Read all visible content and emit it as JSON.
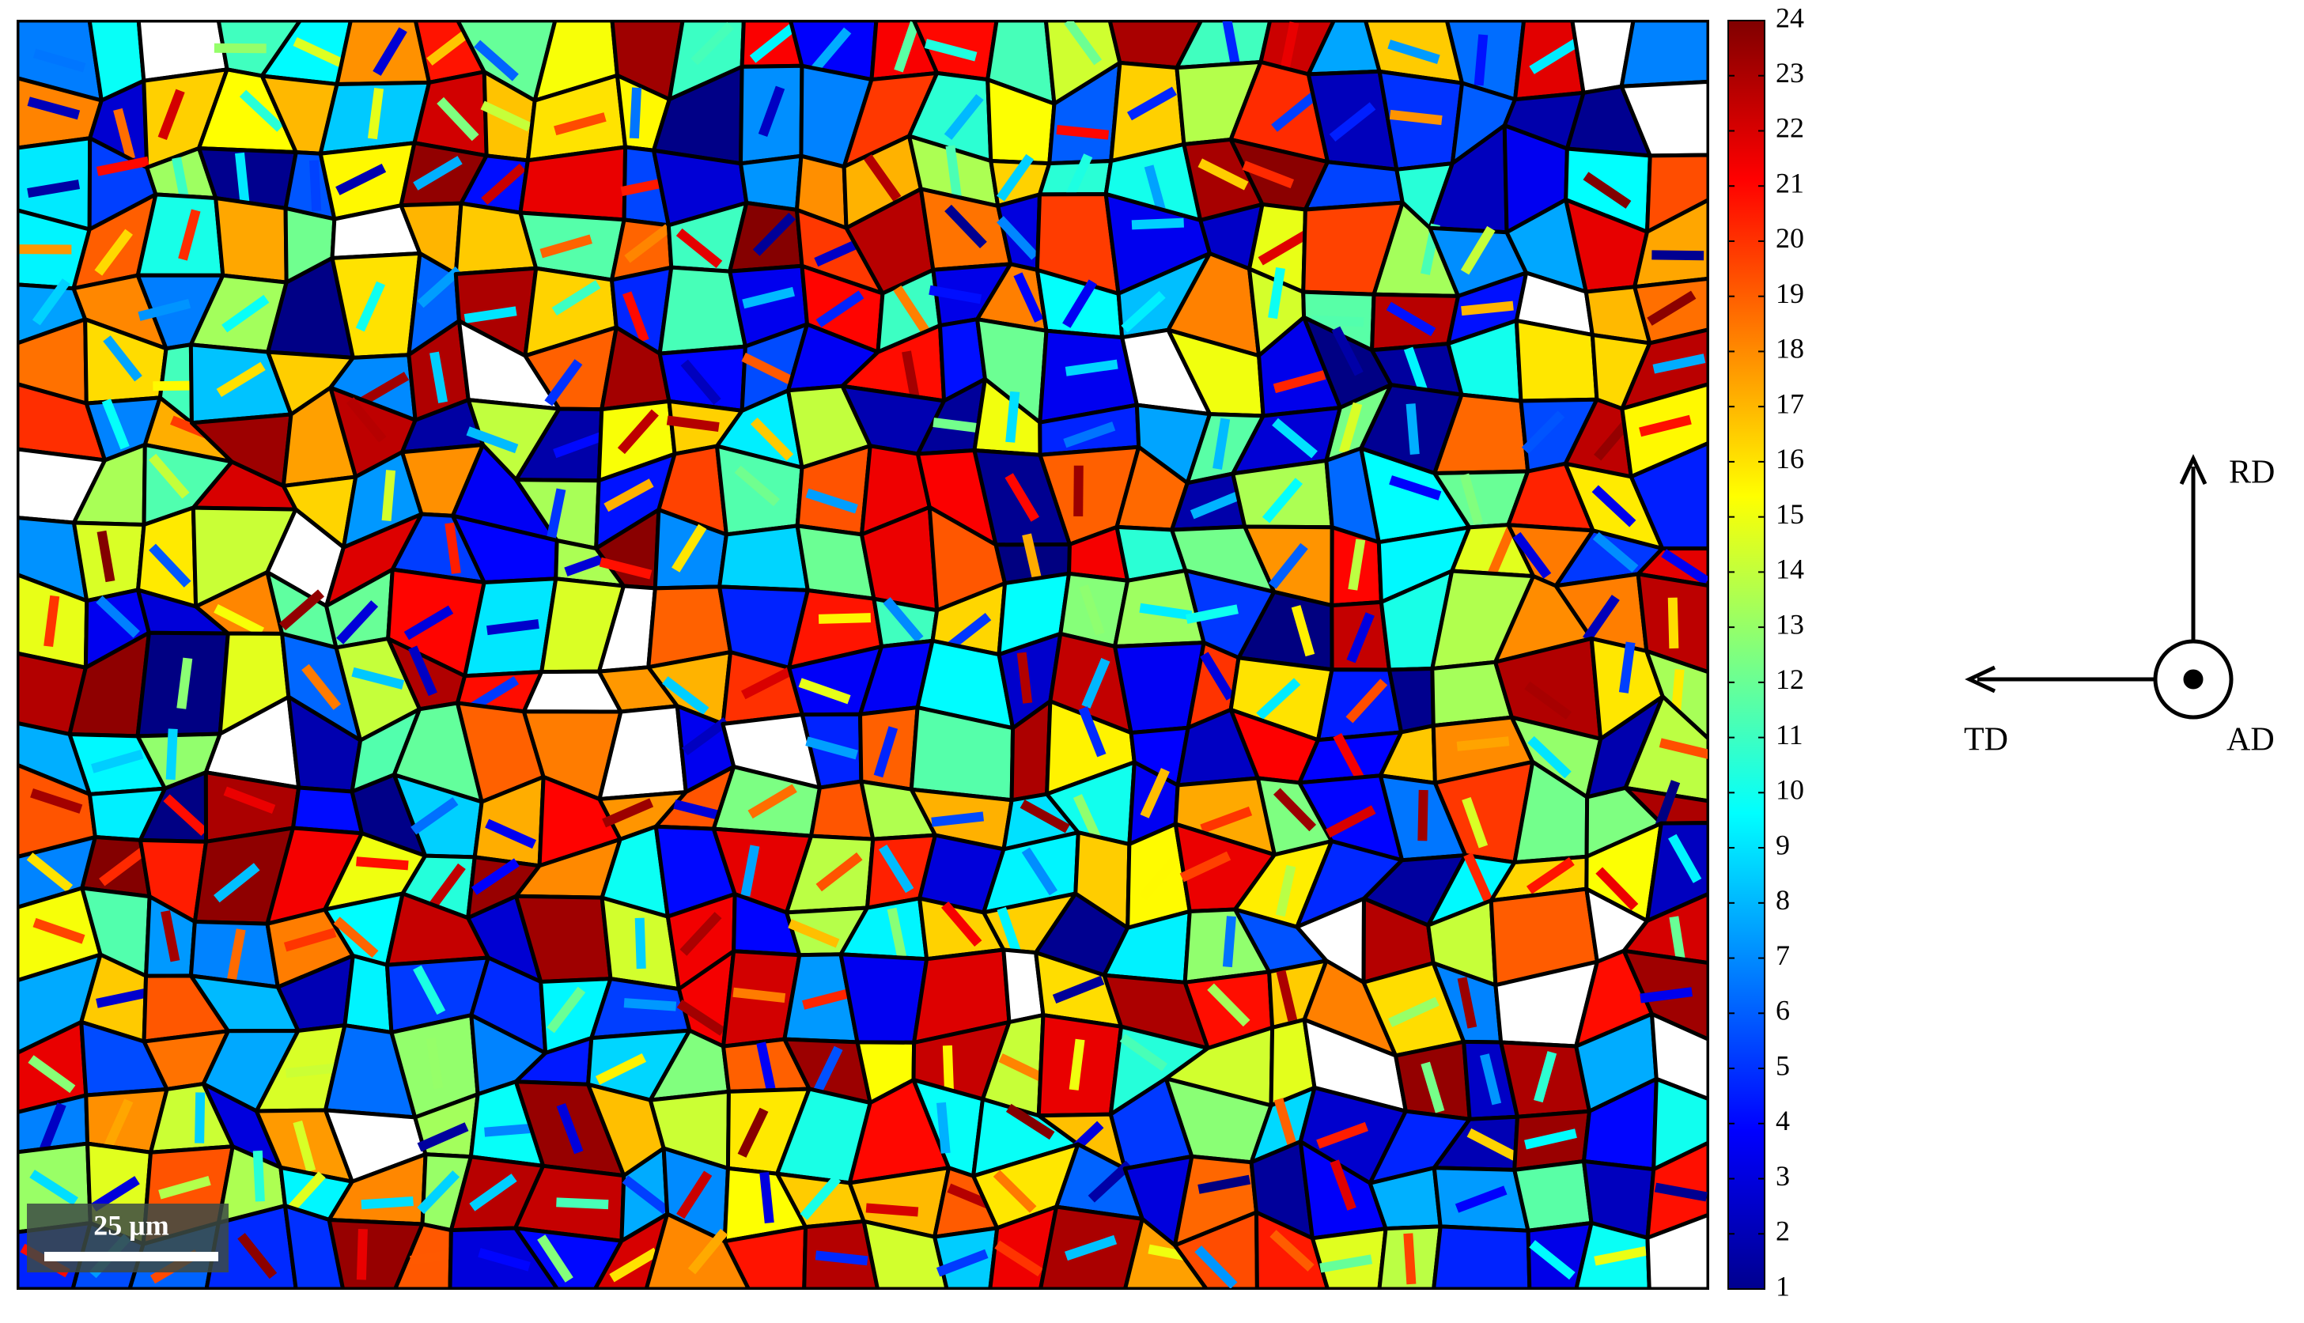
{
  "colorbar": {
    "range": [
      1,
      24
    ],
    "ticks": [
      1,
      2,
      3,
      4,
      5,
      6,
      7,
      8,
      9,
      10,
      11,
      12,
      13,
      14,
      15,
      16,
      17,
      18,
      19,
      20,
      21,
      22,
      23,
      24
    ]
  },
  "scale_bar": {
    "label": "25 μm"
  },
  "directions": {
    "up": "RD",
    "left": "TD",
    "out": "AD"
  }
}
